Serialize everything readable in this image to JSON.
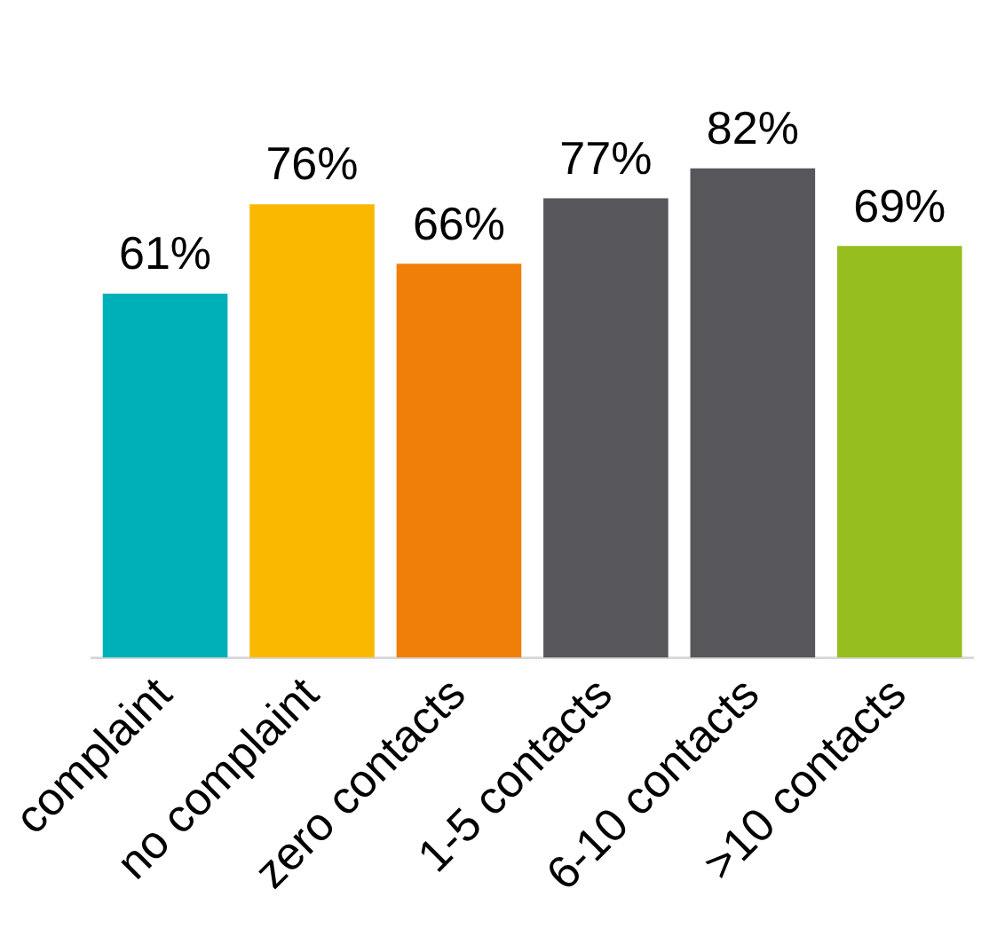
{
  "chart_data": {
    "type": "bar",
    "categories": [
      "complaint",
      "no complaint",
      "zero contacts",
      "1-5 contacts",
      "6-10 contacts",
      ">10 contacts"
    ],
    "values": [
      61,
      76,
      66,
      77,
      82,
      69
    ],
    "colors": [
      "#00b0b9",
      "#fbb800",
      "#f07f09",
      "#57565b",
      "#57565b",
      "#96be1e"
    ],
    "value_labels": [
      "61%",
      "76%",
      "66%",
      "77%",
      "82%",
      "69%"
    ],
    "tick_labels": "x",
    "grid": false
  }
}
